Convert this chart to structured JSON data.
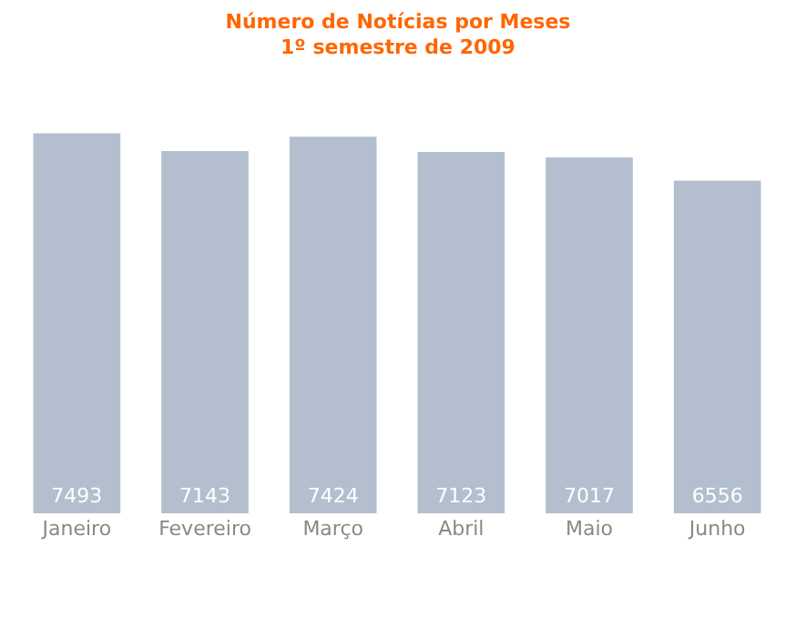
{
  "chart_data": {
    "type": "bar",
    "title": "Número de Notícias por Meses",
    "subtitle": "1º semestre de 2009",
    "categories": [
      "Janeiro",
      "Fevereiro",
      "Março",
      "Abril",
      "Maio",
      "Junho"
    ],
    "values": [
      7493,
      7143,
      7424,
      7123,
      7017,
      6556
    ],
    "color": "#b3bfcf",
    "ylim": [
      0,
      7500
    ],
    "data_labels": true,
    "grid": false,
    "legend": false
  }
}
